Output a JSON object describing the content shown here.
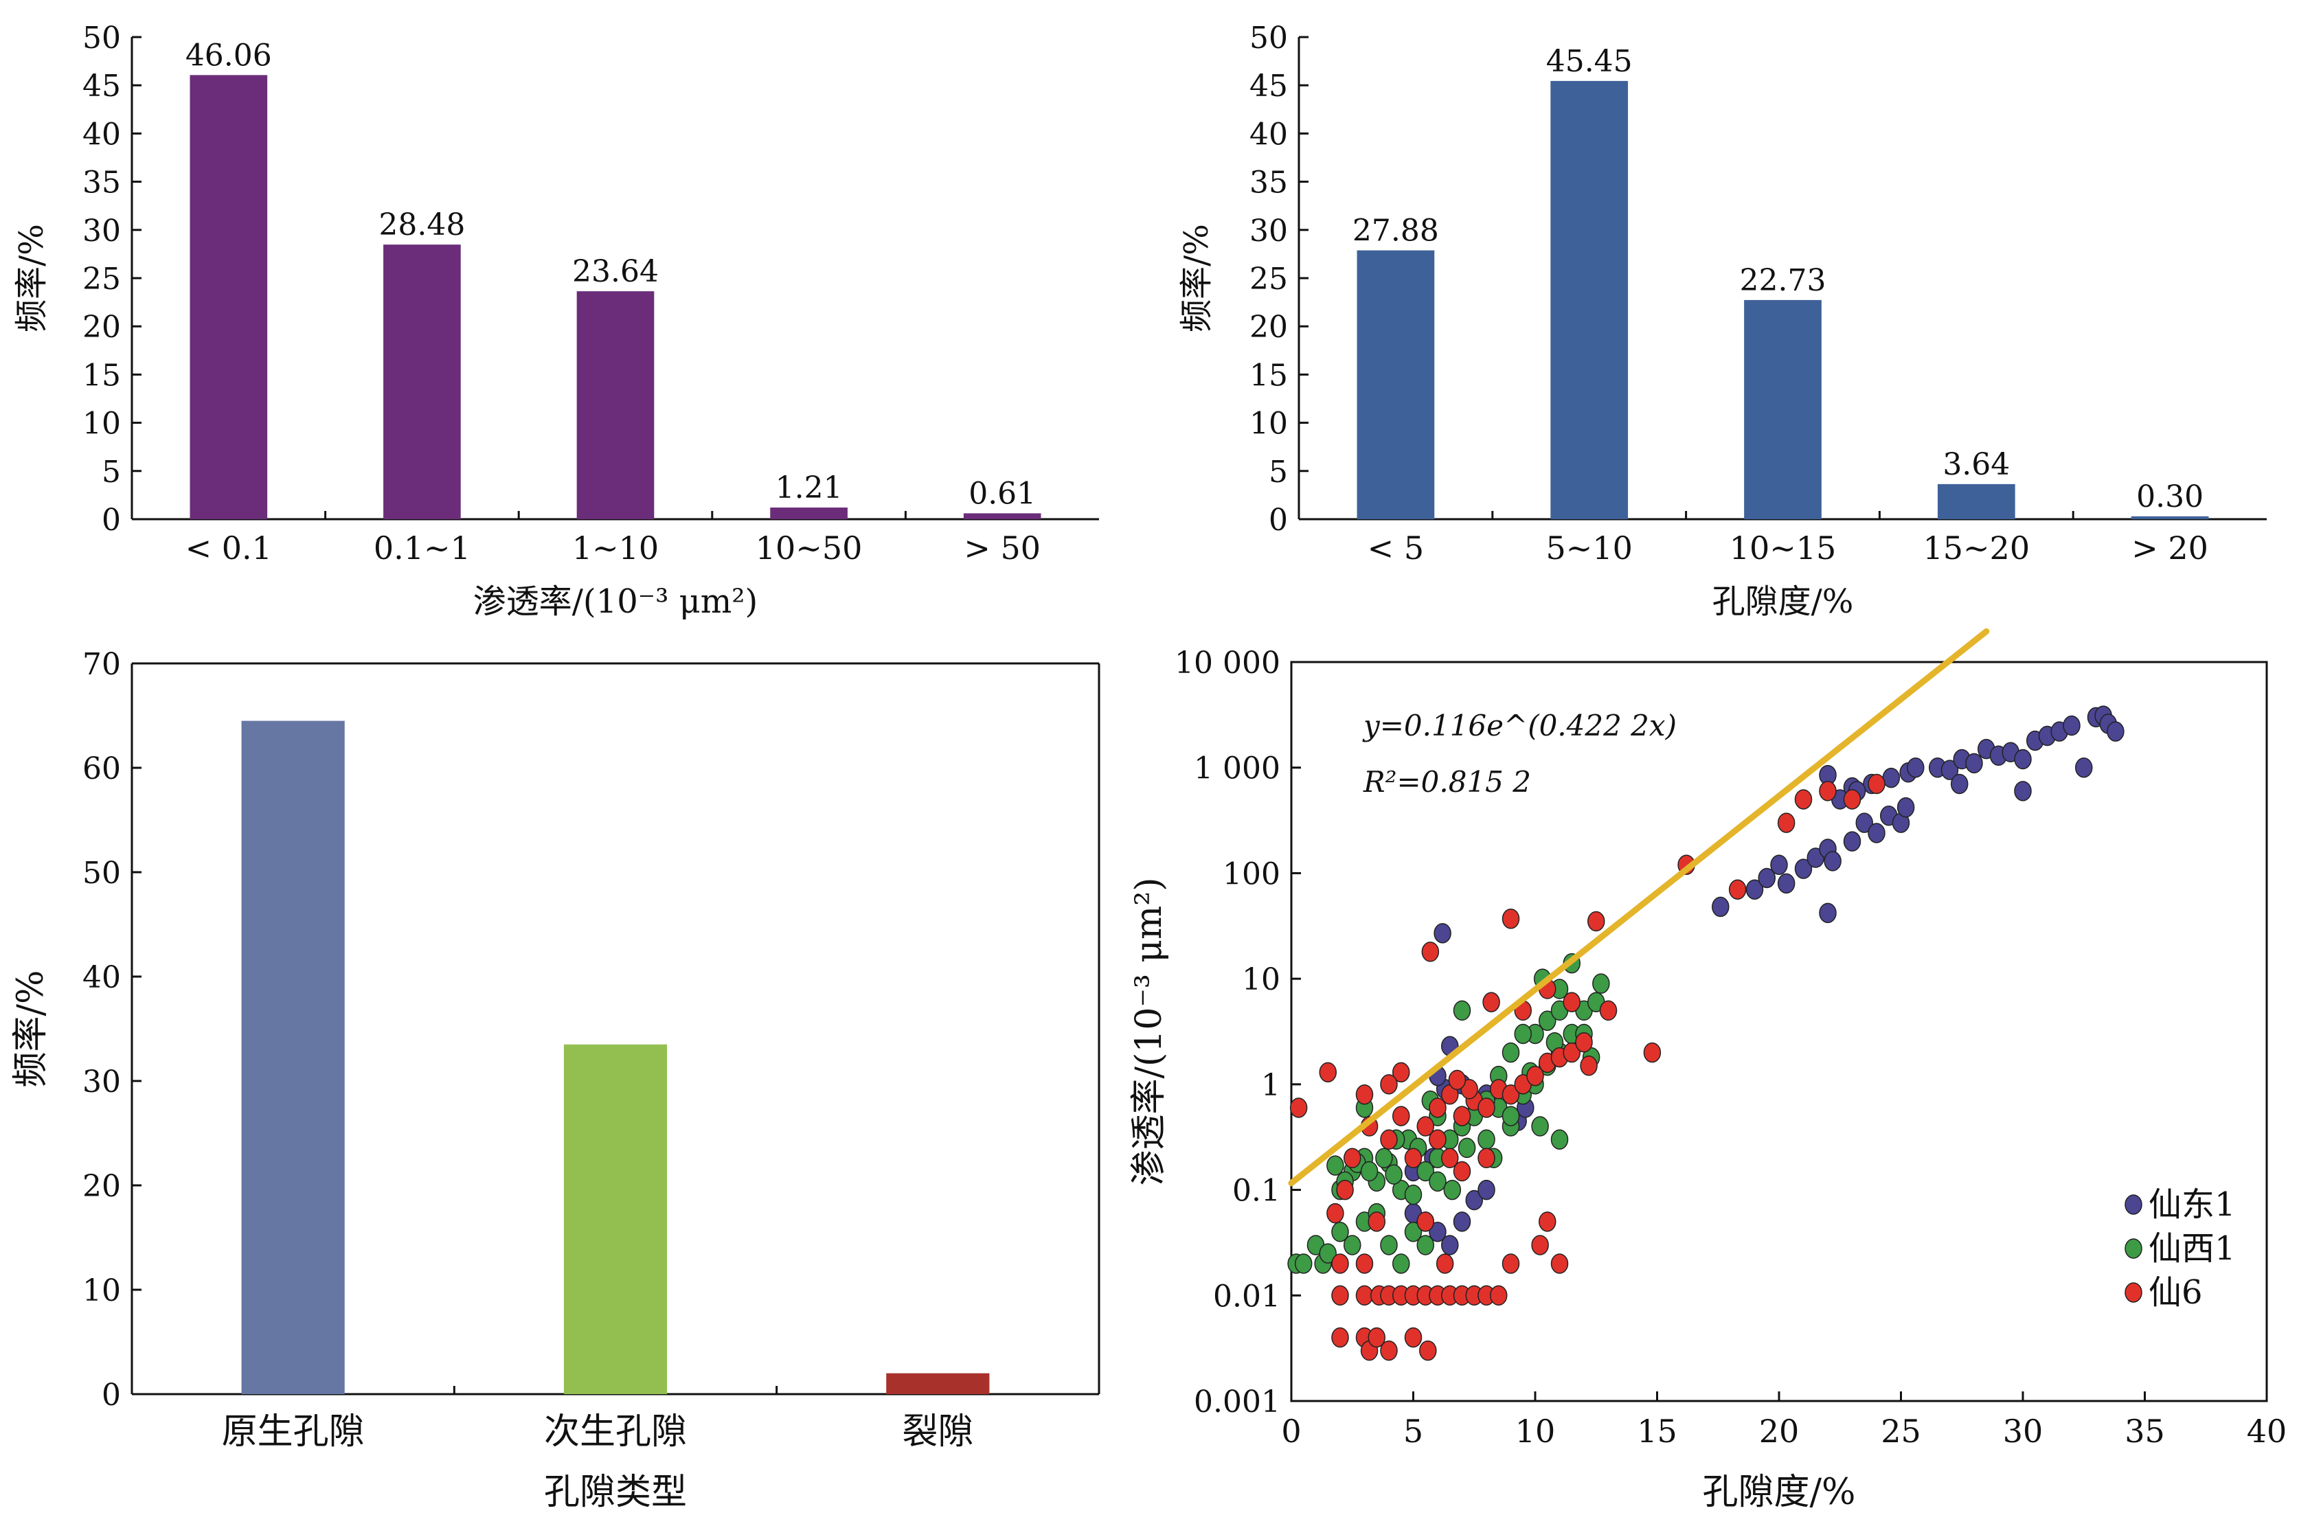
{
  "chart_data": [
    {
      "type": "bar",
      "categories": [
        "< 0.1",
        "0.1~1",
        "1~10",
        "10~50",
        "> 50"
      ],
      "values": [
        46.06,
        28.48,
        23.64,
        1.21,
        0.61
      ],
      "data_labels": [
        "46.06",
        "28.48",
        "23.64",
        "1.21",
        "0.61"
      ],
      "ylabel": "频率/%",
      "xlabel": "渗透率/(10⁻³ μm²)",
      "ylim": [
        0,
        50
      ],
      "yticks": [
        "0",
        "5",
        "10",
        "15",
        "20",
        "25",
        "30",
        "35",
        "40",
        "45",
        "50"
      ],
      "color": "#6b2d7a",
      "grid": false
    },
    {
      "type": "bar",
      "categories": [
        "< 5",
        "5~10",
        "10~15",
        "15~20",
        "> 20"
      ],
      "values": [
        27.88,
        45.45,
        22.73,
        3.64,
        0.3
      ],
      "data_labels": [
        "27.88",
        "45.45",
        "22.73",
        "3.64",
        "0.30"
      ],
      "ylabel": "频率/%",
      "xlabel": "孔隙度/%",
      "ylim": [
        0,
        50
      ],
      "yticks": [
        "0",
        "5",
        "10",
        "15",
        "20",
        "25",
        "30",
        "35",
        "40",
        "45",
        "50"
      ],
      "color": "#3e6199",
      "grid": false
    },
    {
      "type": "bar",
      "categories": [
        "原生孔隙",
        "次生孔隙",
        "裂隙"
      ],
      "values": [
        64.5,
        33.5,
        2.0
      ],
      "colors": [
        "#6677a3",
        "#93bf51",
        "#a8322b"
      ],
      "ylabel": "频率/%",
      "xlabel": "孔隙类型",
      "ylim": [
        0,
        70
      ],
      "yticks": [
        "0",
        "10",
        "20",
        "30",
        "40",
        "50",
        "60",
        "70"
      ],
      "grid": false
    },
    {
      "type": "scatter",
      "xlabel": "孔隙度/%",
      "ylabel": "渗透率/(10⁻³ μm²)",
      "xlim": [
        0,
        40
      ],
      "ylim": [
        0.001,
        10000
      ],
      "yscale": "log",
      "xticks": [
        "0",
        "5",
        "10",
        "15",
        "20",
        "25",
        "30",
        "35",
        "40"
      ],
      "yticks": [
        "0.001",
        "0.01",
        "0.1",
        "1",
        "10",
        "100",
        "1 000",
        "10 000"
      ],
      "equation": "y=0.116e^(0.422 2x)",
      "r2": "R²=0.815 2",
      "trendline": {
        "a": 0.116,
        "b": 0.4222,
        "x_start": 0,
        "x_end": 28.5,
        "color": "#e4b52a"
      },
      "legend_position": "bottom-right",
      "series": [
        {
          "name": "仙东1",
          "color": "#4b4592",
          "points": [
            [
              5,
              0.06
            ],
            [
              5.5,
              0.05
            ],
            [
              6,
              0.04
            ],
            [
              6.5,
              0.03
            ],
            [
              7,
              0.05
            ],
            [
              7.5,
              0.08
            ],
            [
              8,
              0.1
            ],
            [
              5,
              0.15
            ],
            [
              6,
              0.3
            ],
            [
              7,
              0.5
            ],
            [
              8,
              0.8
            ],
            [
              6.3,
              0.9
            ],
            [
              7,
              1.0
            ],
            [
              6,
              1.2
            ],
            [
              7.6,
              0.6
            ],
            [
              5.8,
              0.2
            ],
            [
              6.2,
              27
            ],
            [
              6.5,
              2.3
            ],
            [
              9.3,
              0.45
            ],
            [
              9.6,
              0.6
            ],
            [
              17.6,
              48
            ],
            [
              19,
              70
            ],
            [
              19.5,
              90
            ],
            [
              20,
              120
            ],
            [
              20.3,
              80
            ],
            [
              21,
              110
            ],
            [
              21.5,
              140
            ],
            [
              22,
              170
            ],
            [
              22.2,
              130
            ],
            [
              22,
              42
            ],
            [
              23,
              200
            ],
            [
              23.5,
              300
            ],
            [
              24,
              240
            ],
            [
              24.5,
              350
            ],
            [
              25,
              300
            ],
            [
              25.2,
              420
            ],
            [
              22.5,
              500
            ],
            [
              23,
              650
            ],
            [
              23.8,
              700
            ],
            [
              24.6,
              800
            ],
            [
              25.3,
              900
            ],
            [
              22,
              850
            ],
            [
              23.2,
              600
            ],
            [
              25.6,
              1000
            ],
            [
              26.5,
              1000
            ],
            [
              27,
              950
            ],
            [
              27.5,
              1200
            ],
            [
              28,
              1100
            ],
            [
              28.5,
              1500
            ],
            [
              29,
              1300
            ],
            [
              29.5,
              1400
            ],
            [
              30,
              1200
            ],
            [
              30.5,
              1800
            ],
            [
              31,
              2000
            ],
            [
              31.5,
              2200
            ],
            [
              32.5,
              1000
            ],
            [
              33,
              3000
            ],
            [
              33.3,
              3100
            ],
            [
              33.5,
              2600
            ],
            [
              33.8,
              2200
            ],
            [
              30,
              600
            ],
            [
              27.4,
              700
            ],
            [
              32,
              2500
            ]
          ]
        },
        {
          "name": "仙西1",
          "color": "#3d9a45",
          "points": [
            [
              0.2,
              0.02
            ],
            [
              0.5,
              0.02
            ],
            [
              1,
              0.03
            ],
            [
              1.3,
              0.02
            ],
            [
              1.5,
              0.025
            ],
            [
              2,
              0.04
            ],
            [
              2.5,
              0.03
            ],
            [
              3,
              0.05
            ],
            [
              3.5,
              0.06
            ],
            [
              4,
              0.03
            ],
            [
              4.5,
              0.02
            ],
            [
              5,
              0.04
            ],
            [
              5.5,
              0.03
            ],
            [
              2,
              0.1
            ],
            [
              2.5,
              0.15
            ],
            [
              3,
              0.2
            ],
            [
              3.5,
              0.12
            ],
            [
              4,
              0.18
            ],
            [
              4.5,
              0.1
            ],
            [
              1.8,
              0.17
            ],
            [
              2.2,
              0.12
            ],
            [
              2.7,
              0.18
            ],
            [
              3.2,
              0.15
            ],
            [
              3.8,
              0.2
            ],
            [
              4.2,
              0.14
            ],
            [
              4.8,
              0.3
            ],
            [
              5.2,
              0.25
            ],
            [
              6,
              0.2
            ],
            [
              6.5,
              0.3
            ],
            [
              7,
              0.4
            ],
            [
              7.5,
              0.5
            ],
            [
              8,
              0.3
            ],
            [
              8.5,
              0.6
            ],
            [
              9,
              0.4
            ],
            [
              9.5,
              0.8
            ],
            [
              10,
              1.0
            ],
            [
              10.5,
              1.5
            ],
            [
              11,
              2.0
            ],
            [
              11.5,
              3.0
            ],
            [
              12,
              5.0
            ],
            [
              12.5,
              6.0
            ],
            [
              10,
              3.0
            ],
            [
              10.5,
              4.0
            ],
            [
              11,
              5.0
            ],
            [
              9,
              2.0
            ],
            [
              9.5,
              3.0
            ],
            [
              10.3,
              10
            ],
            [
              11,
              8
            ],
            [
              12.7,
              9
            ],
            [
              7,
              5
            ],
            [
              5,
              0.09
            ],
            [
              5.5,
              0.15
            ],
            [
              6,
              0.12
            ],
            [
              8,
              0.7
            ],
            [
              8.5,
              1.2
            ],
            [
              9,
              0.5
            ],
            [
              12.3,
              1.8
            ],
            [
              10.2,
              0.4
            ],
            [
              11,
              0.3
            ],
            [
              8.3,
              0.2
            ],
            [
              7.2,
              0.25
            ],
            [
              6.6,
              0.1
            ],
            [
              11.5,
              14
            ],
            [
              9.8,
              1.3
            ],
            [
              10.8,
              2.5
            ],
            [
              12,
              3
            ],
            [
              6,
              0.5
            ],
            [
              4.3,
              0.3
            ],
            [
              5.7,
              0.7
            ],
            [
              3,
              0.6
            ]
          ]
        },
        {
          "name": "仙6",
          "color": "#e0322b",
          "points": [
            [
              0.3,
              0.6
            ],
            [
              1.5,
              1.3
            ],
            [
              1.8,
              0.06
            ],
            [
              2,
              0.01
            ],
            [
              2,
              0.004
            ],
            [
              2,
              0.02
            ],
            [
              2.5,
              0.2
            ],
            [
              3,
              0.01
            ],
            [
              3,
              0.004
            ],
            [
              3.2,
              0.003
            ],
            [
              3.5,
              0.004
            ],
            [
              3.6,
              0.01
            ],
            [
              4,
              0.01
            ],
            [
              4,
              0.003
            ],
            [
              4.5,
              0.01
            ],
            [
              5,
              0.01
            ],
            [
              5.5,
              0.01
            ],
            [
              6,
              0.01
            ],
            [
              5,
              0.004
            ],
            [
              5.6,
              0.003
            ],
            [
              6.5,
              0.01
            ],
            [
              7,
              0.01
            ],
            [
              7.5,
              0.01
            ],
            [
              8,
              0.01
            ],
            [
              8.5,
              0.01
            ],
            [
              3,
              0.8
            ],
            [
              3.2,
              0.4
            ],
            [
              4,
              0.3
            ],
            [
              4.5,
              0.5
            ],
            [
              5,
              0.2
            ],
            [
              5.5,
              0.4
            ],
            [
              6,
              0.6
            ],
            [
              6.5,
              0.8
            ],
            [
              7,
              0.5
            ],
            [
              7.5,
              0.7
            ],
            [
              8,
              0.6
            ],
            [
              8.5,
              0.9
            ],
            [
              9,
              0.8
            ],
            [
              9.5,
              1.0
            ],
            [
              10,
              1.2
            ],
            [
              10.5,
              1.6
            ],
            [
              11,
              1.8
            ],
            [
              11.5,
              2.0
            ],
            [
              12,
              2.5
            ],
            [
              13,
              5.0
            ],
            [
              14.8,
              2.0
            ],
            [
              16.2,
              120
            ],
            [
              18.3,
              70
            ],
            [
              20.3,
              300
            ],
            [
              21,
              500
            ],
            [
              22,
              600
            ],
            [
              23,
              500
            ],
            [
              24,
              700
            ],
            [
              12.5,
              35
            ],
            [
              9,
              37
            ],
            [
              5.7,
              18
            ],
            [
              4.5,
              1.3
            ],
            [
              4,
              1.0
            ],
            [
              2.2,
              0.1
            ],
            [
              3,
              0.02
            ],
            [
              3.5,
              0.05
            ],
            [
              6,
              0.3
            ],
            [
              6.5,
              0.2
            ],
            [
              7,
              0.15
            ],
            [
              8,
              0.2
            ],
            [
              10.5,
              0.05
            ],
            [
              11,
              0.02
            ],
            [
              10.2,
              0.03
            ],
            [
              9,
              0.02
            ],
            [
              5.5,
              0.05
            ],
            [
              6.3,
              0.02
            ],
            [
              8.2,
              6.0
            ],
            [
              9.5,
              5.0
            ],
            [
              10.5,
              8
            ],
            [
              11.5,
              6
            ],
            [
              12.2,
              1.5
            ],
            [
              7.3,
              0.9
            ],
            [
              6.8,
              1.1
            ]
          ]
        }
      ]
    }
  ]
}
